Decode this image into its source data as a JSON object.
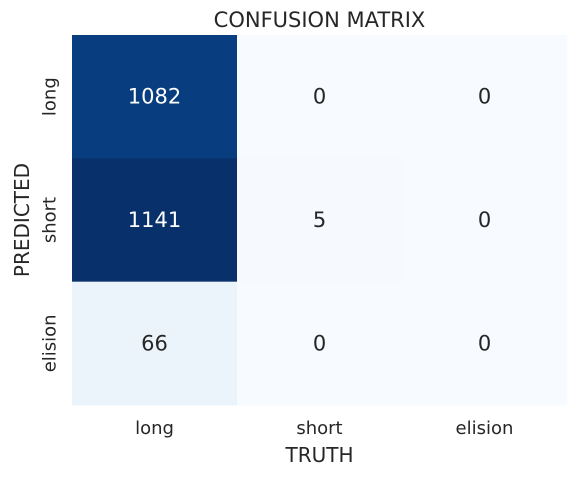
{
  "chart_data": {
    "type": "heatmap",
    "title": "CONFUSION MATRIX",
    "xlabel": "TRUTH",
    "ylabel": "PREDICTED",
    "x_categories": [
      "long",
      "short",
      "elision"
    ],
    "y_categories": [
      "long",
      "short",
      "elision"
    ],
    "values": [
      [
        1082,
        0,
        0
      ],
      [
        1141,
        5,
        0
      ],
      [
        66,
        0,
        0
      ]
    ],
    "colormap": "Blues",
    "colorbar": false,
    "grid": false
  }
}
